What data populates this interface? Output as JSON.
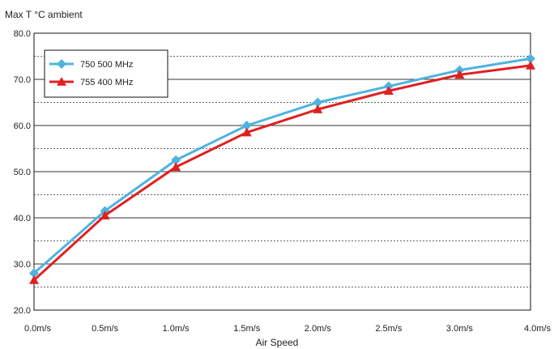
{
  "chart_data": {
    "type": "line",
    "title": "",
    "ylabel": "Max T °C ambient",
    "xlabel": "Air Speed",
    "categories": [
      "0.0m/s",
      "0.5m/s",
      "1.0m/s",
      "1.5m/s",
      "2.0m/s",
      "2.5m/s",
      "3.0m/s",
      "4.0m/s"
    ],
    "ylim": [
      20,
      80
    ],
    "yticks": [
      "20.0",
      "30.0",
      "40.0",
      "50.0",
      "60.0",
      "70.0",
      "80.0"
    ],
    "gridlines": "horizontal, solid at multiples of 10, dashed at 5 offsets",
    "legend_position": "top-left",
    "series": [
      {
        "name": "750 500 MHz",
        "color": "#4fb3e0",
        "marker": "diamond",
        "values": [
          28.0,
          41.5,
          52.5,
          60.0,
          65.0,
          68.5,
          72.0,
          74.5
        ]
      },
      {
        "name": "755 400 MHz",
        "color": "#e02020",
        "marker": "triangle",
        "values": [
          26.5,
          40.5,
          51.0,
          58.5,
          63.5,
          67.5,
          71.0,
          73.0
        ]
      }
    ]
  }
}
